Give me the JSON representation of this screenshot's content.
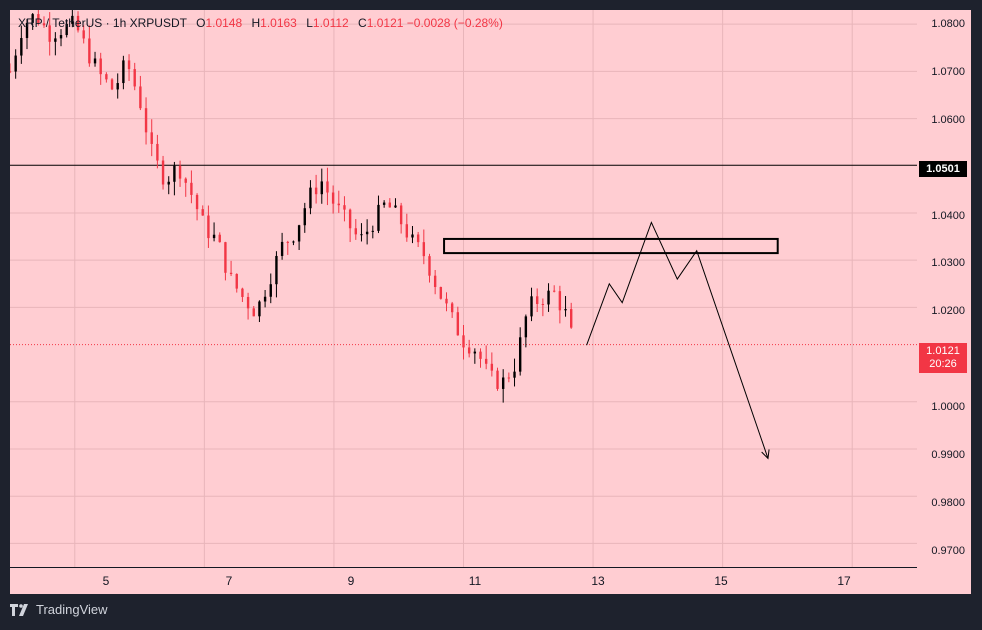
{
  "legend": {
    "symbol": "XRP / TetherUS · 1h",
    "ticker": "XRPUSDT",
    "o_label": "O",
    "o": "1.0148",
    "h_label": "H",
    "h": "1.0163",
    "l_label": "L",
    "l": "1.0112",
    "c_label": "C",
    "c": "1.0121",
    "change": "−0.0028 (−0.28%)"
  },
  "colors": {
    "background": "#ffcdd2",
    "down": "#f23645",
    "up": "#000000",
    "frame": "#1e222d"
  },
  "price_axis": [
    "1.0800",
    "1.0700",
    "1.0600",
    "1.0400",
    "1.0300",
    "1.0200",
    "1.0000",
    "0.9900",
    "0.9800",
    "0.9700"
  ],
  "time_axis": [
    "5",
    "7",
    "9",
    "11",
    "13",
    "15",
    "17"
  ],
  "horizontal_line": {
    "price": 1.0501,
    "label": "1.0501"
  },
  "current_price": {
    "price": 1.0121,
    "label": "1.0121",
    "countdown": "20:26"
  },
  "footer": {
    "brand": "TradingView"
  },
  "chart_data": {
    "type": "line",
    "title": "",
    "xlabel": "",
    "ylabel": "",
    "ylim": [
      0.965,
      1.083
    ],
    "xlim": [
      4.0,
      18.0
    ],
    "series": [
      {
        "x": [
          4.0,
          4.2,
          4.4,
          4.6,
          4.8,
          5.0,
          5.2,
          5.4,
          5.6,
          5.8,
          6.0,
          6.2,
          6.4,
          6.6,
          6.8,
          7.0,
          7.2,
          7.4,
          7.6,
          7.8,
          8.0,
          8.2,
          8.4,
          8.6,
          8.8,
          9.0,
          9.2,
          9.4,
          9.6,
          9.8,
          10.0,
          10.2,
          10.4,
          10.6,
          10.8,
          11.0,
          11.2,
          11.4,
          11.6,
          11.8,
          12.0,
          12.2,
          12.4,
          12.6,
          12.7
        ],
        "y": [
          1.07,
          1.08,
          1.082,
          1.078,
          1.079,
          1.08,
          1.074,
          1.069,
          1.066,
          1.072,
          1.064,
          1.052,
          1.047,
          1.05,
          1.044,
          1.037,
          1.034,
          1.026,
          1.022,
          1.019,
          1.026,
          1.033,
          1.036,
          1.043,
          1.047,
          1.042,
          1.038,
          1.034,
          1.038,
          1.042,
          1.039,
          1.034,
          1.031,
          1.024,
          1.018,
          1.013,
          1.011,
          1.005,
          1.004,
          1.008,
          1.02,
          1.022,
          1.023,
          1.018,
          1.012
        ]
      }
    ],
    "horizontal_lines": [
      1.0501,
      1.0121
    ],
    "zone": {
      "x": [
        10.7,
        15.85
      ],
      "y": [
        1.0315,
        1.0345
      ]
    },
    "projection": {
      "x": [
        12.9,
        13.25,
        13.45,
        13.9,
        14.3,
        14.6,
        15.7
      ],
      "y": [
        1.012,
        1.025,
        1.021,
        1.038,
        1.026,
        1.032,
        0.988
      ]
    }
  }
}
